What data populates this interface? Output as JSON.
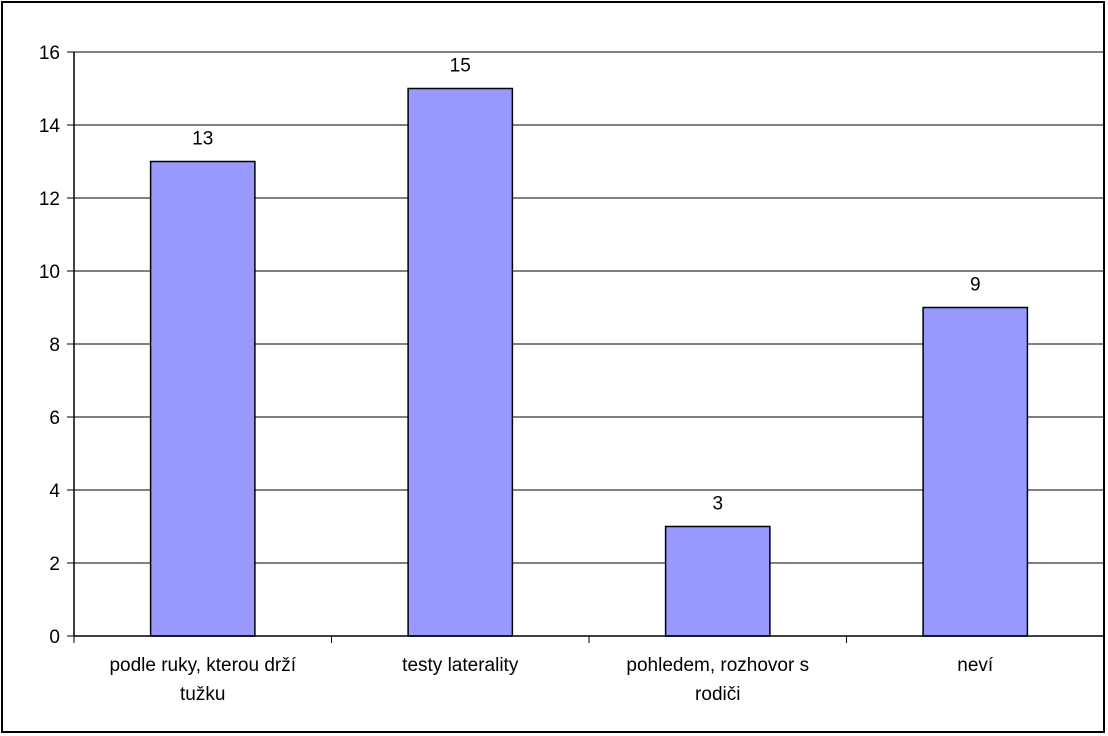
{
  "chart_data": {
    "type": "bar",
    "categories": [
      [
        "podle ruky, kterou drží",
        "tužku"
      ],
      [
        "testy laterality"
      ],
      [
        "pohledem, rozhovor s",
        "rodiči"
      ],
      [
        "neví"
      ]
    ],
    "values": [
      13,
      15,
      3,
      9
    ],
    "ylim": [
      0,
      16
    ],
    "yticks": [
      0,
      2,
      4,
      6,
      8,
      10,
      12,
      14,
      16
    ],
    "grid": true,
    "data_labels": [
      "13",
      "15",
      "3",
      "9"
    ],
    "colors": {
      "bar_fill": "#9999ff",
      "bar_stroke": "#000000",
      "grid": "#000000"
    }
  }
}
